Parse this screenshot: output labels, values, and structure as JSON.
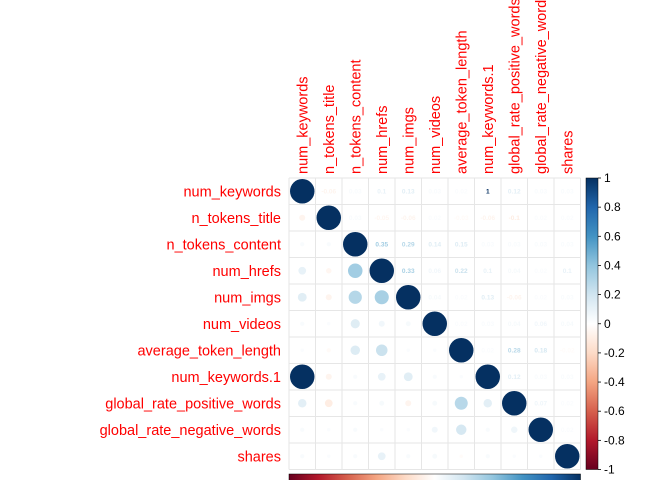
{
  "chart_data": {
    "type": "heatmap",
    "style": "corrplot mixed: circles in lower triangle, coefficients in upper triangle",
    "variables": [
      "num_keywords",
      "n_tokens_title",
      "n_tokens_content",
      "num_hrefs",
      "num_imgs",
      "num_videos",
      "average_token_length",
      "num_keywords.1",
      "global_rate_positive_words",
      "global_rate_negative_words",
      "shares"
    ],
    "matrix": [
      [
        1,
        -0.06,
        0.03,
        0.1,
        0.13,
        0.03,
        0.02,
        1,
        0.12,
        0.03,
        0.03
      ],
      [
        -0.06,
        1,
        0.03,
        -0.05,
        -0.06,
        0.02,
        -0.03,
        -0.06,
        -0.1,
        0.02,
        0.02
      ],
      [
        0.03,
        0.03,
        1,
        0.35,
        0.29,
        0.14,
        0.15,
        0.03,
        0.03,
        0.03,
        0.03
      ],
      [
        0.1,
        -0.05,
        0.35,
        1,
        0.33,
        0.06,
        0.22,
        0.1,
        0.04,
        0.02,
        0.1
      ],
      [
        0.13,
        -0.06,
        0.29,
        0.33,
        1,
        0.04,
        0.02,
        0.13,
        -0.06,
        0.02,
        0.03
      ],
      [
        0.03,
        0.02,
        0.14,
        0.06,
        0.04,
        1,
        0.02,
        0.03,
        0.04,
        0.06,
        0.04
      ],
      [
        0.02,
        -0.03,
        0.15,
        0.22,
        0.02,
        0.02,
        1,
        0.02,
        0.28,
        0.18,
        -0.02
      ],
      [
        1,
        -0.06,
        0.03,
        0.1,
        0.13,
        0.03,
        0.02,
        1,
        0.12,
        0.03,
        0.03
      ],
      [
        0.12,
        -0.1,
        0.03,
        0.04,
        -0.06,
        0.04,
        0.28,
        0.12,
        1,
        0.07,
        0.02
      ],
      [
        0.03,
        0.02,
        0.03,
        0.02,
        0.02,
        0.06,
        0.18,
        0.03,
        0.07,
        1,
        0.02
      ],
      [
        0.03,
        0.02,
        0.03,
        0.1,
        0.03,
        0.04,
        -0.02,
        0.03,
        0.02,
        0.02,
        1
      ]
    ],
    "colorbar": {
      "range": [
        -1,
        1
      ],
      "ticks": [
        "1",
        "0.8",
        "0.6",
        "0.4",
        "0.2",
        "0",
        "-0.2",
        "-0.4",
        "-0.6",
        "-0.8",
        "-1"
      ],
      "colors": [
        "#67001F",
        "#B2182B",
        "#D6604D",
        "#F4A582",
        "#FDDBC7",
        "#FFFFFF",
        "#D1E5F0",
        "#92C5DE",
        "#4393C3",
        "#2166AC",
        "#053061"
      ]
    },
    "label_color": "#FF0000",
    "grid": true,
    "title": "",
    "xlabel": "",
    "ylabel": ""
  }
}
